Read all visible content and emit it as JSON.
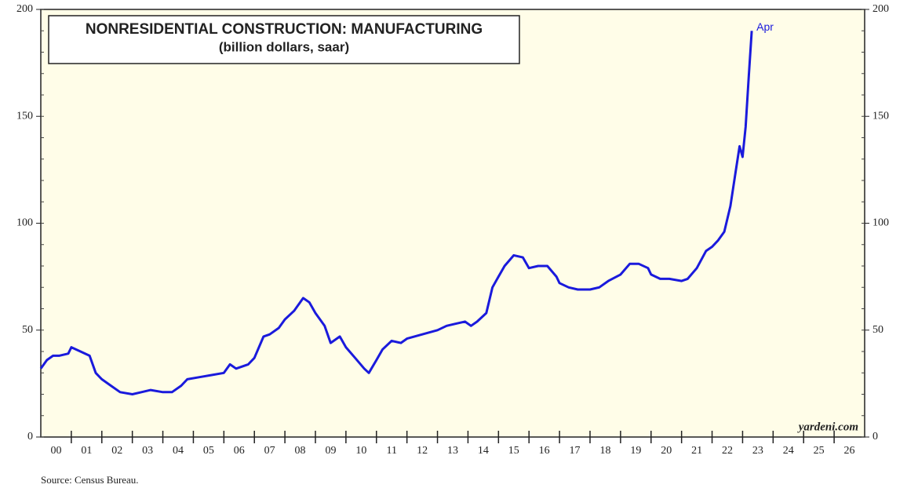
{
  "chart_data": {
    "type": "line",
    "title": "NONRESIDENTIAL CONSTRUCTION: MANUFACTURING",
    "subtitle": "(billion dollars, saar)",
    "annotation": "Apr",
    "watermark": "yardeni.com",
    "source": "Source: Census Bureau.",
    "x": [
      2000.0,
      2000.2,
      2000.4,
      2000.6,
      2000.9,
      2001.0,
      2001.3,
      2001.6,
      2001.8,
      2002.0,
      2002.3,
      2002.6,
      2003.0,
      2003.3,
      2003.6,
      2004.0,
      2004.3,
      2004.6,
      2004.8,
      2005.2,
      2005.6,
      2006.0,
      2006.2,
      2006.4,
      2006.8,
      2007.0,
      2007.3,
      2007.5,
      2007.8,
      2008.0,
      2008.3,
      2008.6,
      2008.8,
      2009.0,
      2009.3,
      2009.5,
      2009.8,
      2010.0,
      2010.3,
      2010.6,
      2010.75,
      2011.0,
      2011.2,
      2011.5,
      2011.8,
      2012.0,
      2012.5,
      2013.0,
      2013.3,
      2013.6,
      2013.9,
      2014.1,
      2014.3,
      2014.6,
      2014.8,
      2015.0,
      2015.2,
      2015.5,
      2015.8,
      2016.0,
      2016.3,
      2016.6,
      2016.9,
      2017.0,
      2017.3,
      2017.6,
      2018.0,
      2018.3,
      2018.6,
      2019.0,
      2019.3,
      2019.6,
      2019.9,
      2020.0,
      2020.3,
      2020.6,
      2021.0,
      2021.2,
      2021.5,
      2021.8,
      2022.0,
      2022.2,
      2022.4,
      2022.6,
      2022.75,
      2022.9,
      2023.0,
      2023.1,
      2023.2,
      2023.3
    ],
    "series": [
      {
        "name": "Manufacturing",
        "color": "#1a1adc",
        "values": [
          32,
          36,
          38,
          38,
          39,
          42,
          40,
          38,
          30,
          27,
          24,
          21,
          20,
          21,
          22,
          21,
          21,
          24,
          27,
          28,
          29,
          30,
          34,
          32,
          34,
          37,
          47,
          48,
          51,
          55,
          59,
          65,
          63,
          58,
          52,
          44,
          47,
          42,
          37,
          32,
          30,
          36,
          41,
          45,
          44,
          46,
          48,
          50,
          52,
          53,
          54,
          52,
          54,
          58,
          70,
          75,
          80,
          85,
          84,
          79,
          80,
          80,
          75,
          72,
          70,
          69,
          69,
          70,
          73,
          76,
          81,
          81,
          79,
          76,
          74,
          74,
          73,
          74,
          79,
          87,
          89,
          92,
          96,
          108,
          122,
          136,
          131,
          145,
          168,
          190
        ]
      }
    ],
    "xlim": [
      2000,
      2027
    ],
    "xticks": [
      {
        "value": 2000.5,
        "label": "00"
      },
      {
        "value": 2001.5,
        "label": "01"
      },
      {
        "value": 2002.5,
        "label": "02"
      },
      {
        "value": 2003.5,
        "label": "03"
      },
      {
        "value": 2004.5,
        "label": "04"
      },
      {
        "value": 2005.5,
        "label": "05"
      },
      {
        "value": 2006.5,
        "label": "06"
      },
      {
        "value": 2007.5,
        "label": "07"
      },
      {
        "value": 2008.5,
        "label": "08"
      },
      {
        "value": 2009.5,
        "label": "09"
      },
      {
        "value": 2010.5,
        "label": "10"
      },
      {
        "value": 2011.5,
        "label": "11"
      },
      {
        "value": 2012.5,
        "label": "12"
      },
      {
        "value": 2013.5,
        "label": "13"
      },
      {
        "value": 2014.5,
        "label": "14"
      },
      {
        "value": 2015.5,
        "label": "15"
      },
      {
        "value": 2016.5,
        "label": "16"
      },
      {
        "value": 2017.5,
        "label": "17"
      },
      {
        "value": 2018.5,
        "label": "18"
      },
      {
        "value": 2019.5,
        "label": "19"
      },
      {
        "value": 2020.5,
        "label": "20"
      },
      {
        "value": 2021.5,
        "label": "21"
      },
      {
        "value": 2022.5,
        "label": "22"
      },
      {
        "value": 2023.5,
        "label": "23"
      },
      {
        "value": 2024.5,
        "label": "24"
      },
      {
        "value": 2025.5,
        "label": "25"
      },
      {
        "value": 2026.5,
        "label": "26"
      }
    ],
    "xminorticks": [
      2001,
      2002,
      2003,
      2004,
      2005,
      2006,
      2007,
      2008,
      2009,
      2010,
      2011,
      2012,
      2013,
      2014,
      2015,
      2016,
      2017,
      2018,
      2019,
      2020,
      2021,
      2022,
      2023,
      2024,
      2025,
      2026
    ],
    "ylim": [
      0,
      200
    ],
    "yticks": [
      0,
      50,
      100,
      150,
      200
    ],
    "y2lim": [
      0,
      200
    ],
    "y2ticks": [
      0,
      50,
      100,
      150,
      200
    ]
  }
}
